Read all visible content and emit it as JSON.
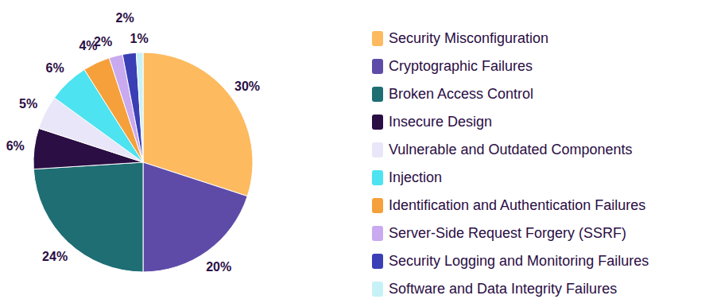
{
  "chart_data": {
    "type": "pie",
    "categories": [
      "Security Misconfiguration",
      "Cryptographic Failures",
      "Broken Access Control",
      "Insecure Design",
      "Vulnerable and Outdated Components",
      "Injection",
      "Identification and Authentication Failures",
      "Server-Side Request Forgery (SSRF)",
      "Security Logging and Monitoring Failures",
      "Software and Data Integrity Failures"
    ],
    "values": [
      30,
      20,
      24,
      6,
      5,
      6,
      4,
      2,
      2,
      1
    ],
    "value_labels": [
      "30%",
      "20%",
      "24%",
      "6%",
      "5%",
      "6%",
      "4%",
      "2%",
      "2%",
      "1%"
    ],
    "colors": [
      "#fdba5e",
      "#5e4ba8",
      "#1e6e74",
      "#2a0e44",
      "#e8e6f8",
      "#4de3f0",
      "#f5a03a",
      "#c9a9f0",
      "#3a3fb5",
      "#c6f2f7"
    ],
    "data_labels": true,
    "legend": "right"
  }
}
